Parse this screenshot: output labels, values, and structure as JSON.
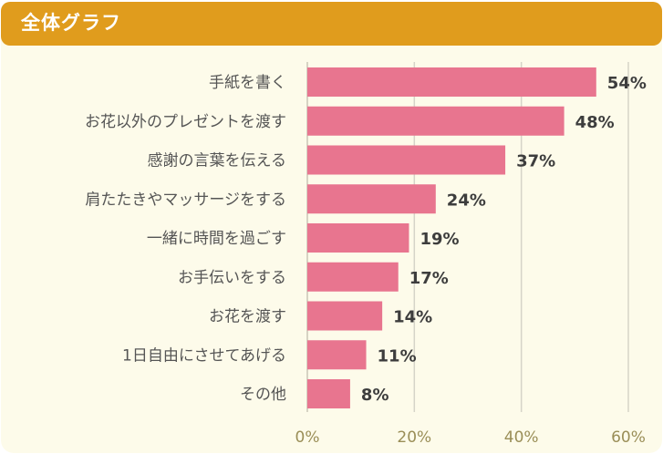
{
  "header": {
    "title": "全体グラフ"
  },
  "colors": {
    "header": "#e09c1d",
    "panel": "#fdfbea",
    "bar": "#e8758f",
    "grid": "#d6d4c8",
    "tick_text": "#9a8e57"
  },
  "chart_data": {
    "type": "bar",
    "orientation": "horizontal",
    "title": "全体グラフ",
    "xlabel": "",
    "ylabel": "",
    "categories": [
      "手紙を書く",
      "お花以外のプレゼントを渡す",
      "感謝の言葉を伝える",
      "肩たたきやマッサージをする",
      "一緒に時間を過ごす",
      "お手伝いをする",
      "お花を渡す",
      "1日自由にさせてあげる",
      "その他"
    ],
    "values": [
      54,
      48,
      37,
      24,
      19,
      17,
      14,
      11,
      8
    ],
    "value_labels": [
      "54%",
      "48%",
      "37%",
      "24%",
      "19%",
      "17%",
      "14%",
      "11%",
      "8%"
    ],
    "xlim": [
      0,
      60
    ],
    "ticks": [
      0,
      20,
      40,
      60
    ],
    "tick_labels": [
      "0%",
      "20%",
      "40%",
      "60%"
    ],
    "grid": true,
    "legend": "none"
  }
}
